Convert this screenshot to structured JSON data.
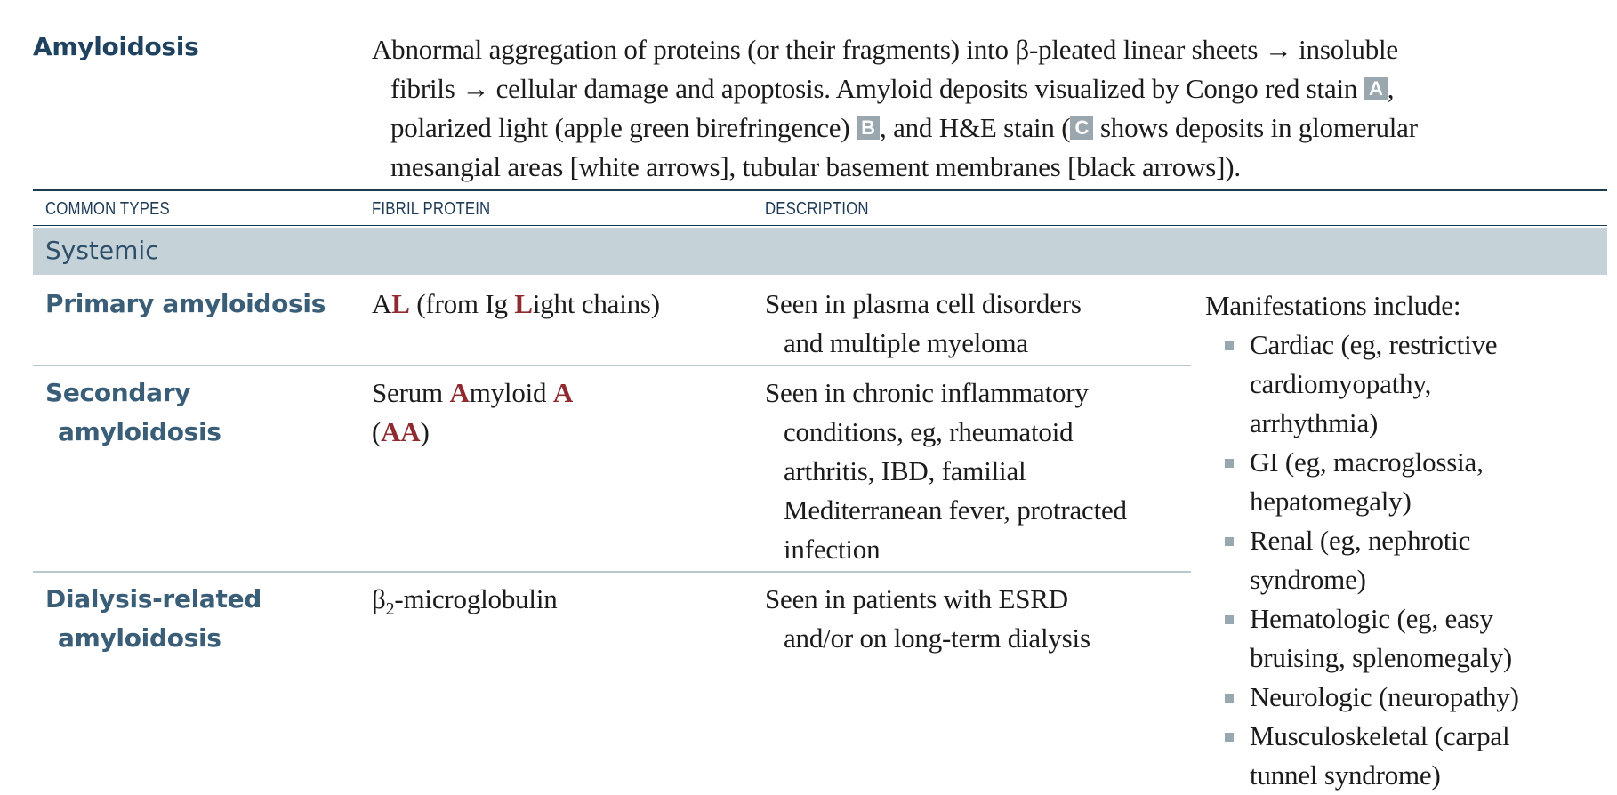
{
  "topic": "Amyloidosis",
  "intro": {
    "l1_a": "Abnormal aggregation of proteins (or their fragments) into β-pleated linear sheets ",
    "l1_arrow": "→",
    "l1_b": " insoluble",
    "l2_a": "fibrils ",
    "l2_arrow": "→",
    "l2_b": " cellular damage and apoptosis. Amyloid deposits visualized by Congo red stain ",
    "tag_a": "A",
    "l2_c": ",",
    "l3_a": "polarized light (apple green birefringence) ",
    "tag_b": "B",
    "l3_b": ", and H&E stain (",
    "tag_c": "C",
    "l3_c": " shows deposits in glomerular",
    "l4": "mesangial areas [white arrows], tubular basement membranes [black arrows])."
  },
  "columns": {
    "types": "COMMON TYPES",
    "protein": "FIBRIL PROTEIN",
    "description": "DESCRIPTION"
  },
  "section": "Systemic",
  "rows": [
    {
      "type_l1": "Primary amyloidosis",
      "protein": {
        "a": "A",
        "b": "L",
        "c": " (from Ig ",
        "d": "L",
        "e": "ight chains)"
      },
      "desc_l1": "Seen in plasma cell disorders",
      "desc_l2": "and multiple myeloma"
    },
    {
      "type_l1": "Secondary",
      "type_l2": "amyloidosis",
      "protein": {
        "a": "Serum ",
        "b": "A",
        "c": "myloid ",
        "d": "A",
        "e": "(",
        "f": "AA",
        "g": ")"
      },
      "desc_l1": "Seen in chronic inflammatory",
      "desc_l2": "conditions, eg, rheumatoid",
      "desc_l3": "arthritis, IBD, familial",
      "desc_l4": "Mediterranean fever, protracted",
      "desc_l5": "infection"
    },
    {
      "type_l1": "Dialysis-related",
      "type_l2": "amyloidosis",
      "protein": {
        "a": "β",
        "sub": "2",
        "b": "-microglobulin"
      },
      "desc_l1": "Seen in patients with ESRD",
      "desc_l2": "and/or on long-term dialysis"
    }
  ],
  "manifestations": {
    "heading": "Manifestations include:",
    "items": [
      {
        "l1": "Cardiac (eg, restrictive",
        "l2": "cardiomyopathy,",
        "l3": "arrhythmia)"
      },
      {
        "l1": "GI (eg, macroglossia,",
        "l2": "hepatomegaly)"
      },
      {
        "l1": "Renal (eg, nephrotic",
        "l2": "syndrome)"
      },
      {
        "l1": "Hematologic (eg, easy",
        "l2": "bruising, splenomegaly)"
      },
      {
        "l1": "Neurologic (neuropathy)"
      },
      {
        "l1": "Musculoskeletal (carpal",
        "l2": "tunnel syndrome)"
      }
    ]
  },
  "colors": {
    "heading_navy": "#1e4260",
    "band_fill": "#c5d3d9",
    "emphasis_red": "#8f2a2f",
    "tag_gray": "#9aa7ae"
  }
}
